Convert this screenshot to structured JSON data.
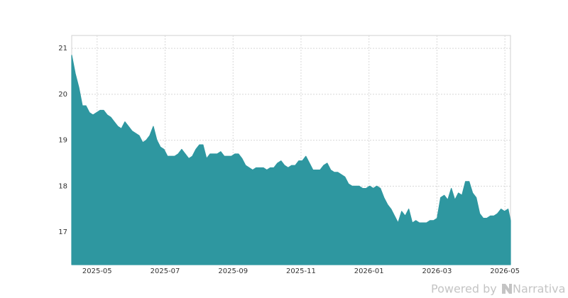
{
  "chart_data": {
    "type": "area",
    "x": [
      2025.271,
      2025.2797,
      2025.2884,
      2025.2971,
      2025.3058,
      2025.3145,
      2025.3232,
      2025.3319,
      2025.3406,
      2025.3493,
      2025.358,
      2025.3667,
      2025.3754,
      2025.3841,
      2025.3928,
      2025.4015,
      2025.4102,
      2025.4189,
      2025.4276,
      2025.4363,
      2025.445,
      2025.4537,
      2025.4624,
      2025.4711,
      2025.4798,
      2025.4885,
      2025.4972,
      2025.5059,
      2025.5146,
      2025.5233,
      2025.532,
      2025.5407,
      2025.5494,
      2025.5581,
      2025.5668,
      2025.5755,
      2025.5842,
      2025.5929,
      2025.6016,
      2025.6103,
      2025.619,
      2025.6277,
      2025.6364,
      2025.6451,
      2025.6538,
      2025.6625,
      2025.6712,
      2025.6799,
      2025.6886,
      2025.6973,
      2025.706,
      2025.7147,
      2025.7234,
      2025.7321,
      2025.7408,
      2025.7495,
      2025.7582,
      2025.7669,
      2025.7756,
      2025.7843,
      2025.793,
      2025.8017,
      2025.8104,
      2025.8191,
      2025.8278,
      2025.8365,
      2025.8452,
      2025.8539,
      2025.8626,
      2025.8713,
      2025.88,
      2025.8887,
      2025.8974,
      2025.9061,
      2025.9148,
      2025.9235,
      2025.9322,
      2025.9409,
      2025.9496,
      2025.9583,
      2025.967,
      2025.9757,
      2025.9844,
      2025.9931,
      2026.0018,
      2026.0105,
      2026.0192,
      2026.0279,
      2026.0366,
      2026.0453,
      2026.054,
      2026.0627,
      2026.0714,
      2026.0801,
      2026.0888,
      2026.0975,
      2026.1062,
      2026.1149,
      2026.1236,
      2026.1323,
      2026.141,
      2026.1497,
      2026.1584,
      2026.1671,
      2026.1758,
      2026.1845,
      2026.1932,
      2026.2019,
      2026.2106,
      2026.2193,
      2026.228,
      2026.2367,
      2026.2454,
      2026.2541,
      2026.2628,
      2026.2715,
      2026.2802,
      2026.2889,
      2026.2976,
      2026.3063,
      2026.315,
      2026.3237,
      2026.3324,
      2026.3411,
      2026.347
    ],
    "values": [
      20.85,
      20.45,
      20.15,
      19.75,
      19.75,
      19.6,
      19.55,
      19.6,
      19.65,
      19.65,
      19.55,
      19.5,
      19.4,
      19.3,
      19.25,
      19.4,
      19.3,
      19.2,
      19.15,
      19.1,
      18.95,
      19.0,
      19.1,
      19.3,
      19.0,
      18.85,
      18.8,
      18.65,
      18.65,
      18.65,
      18.7,
      18.8,
      18.7,
      18.6,
      18.65,
      18.8,
      18.9,
      18.9,
      18.6,
      18.7,
      18.7,
      18.7,
      18.75,
      18.65,
      18.65,
      18.65,
      18.7,
      18.7,
      18.6,
      18.45,
      18.4,
      18.35,
      18.4,
      18.4,
      18.4,
      18.35,
      18.4,
      18.4,
      18.5,
      18.55,
      18.45,
      18.4,
      18.45,
      18.45,
      18.55,
      18.55,
      18.65,
      18.5,
      18.35,
      18.35,
      18.35,
      18.45,
      18.5,
      18.35,
      18.3,
      18.3,
      18.25,
      18.2,
      18.05,
      18.0,
      18.0,
      18.0,
      17.95,
      17.95,
      18.0,
      17.95,
      18.0,
      17.95,
      17.75,
      17.6,
      17.5,
      17.35,
      17.2,
      17.45,
      17.35,
      17.5,
      17.2,
      17.25,
      17.2,
      17.2,
      17.2,
      17.25,
      17.25,
      17.3,
      17.75,
      17.8,
      17.7,
      17.95,
      17.7,
      17.85,
      17.8,
      18.1,
      18.1,
      17.85,
      17.75,
      17.4,
      17.3,
      17.3,
      17.35,
      17.35,
      17.4,
      17.5,
      17.45,
      17.5,
      17.25
    ],
    "color": "#2e97a0",
    "xlim": [
      2025.271,
      2026.347
    ],
    "xticks": [
      {
        "value": 2025.3333,
        "label": "2025-05"
      },
      {
        "value": 2025.5,
        "label": "2025-07"
      },
      {
        "value": 2025.6667,
        "label": "2025-09"
      },
      {
        "value": 2025.8333,
        "label": "2025-11"
      },
      {
        "value": 2026.0,
        "label": "2026-01"
      },
      {
        "value": 2026.1667,
        "label": "2026-03"
      },
      {
        "value": 2026.3333,
        "label": "2026-05"
      }
    ],
    "ylim": [
      16.29,
      21.28
    ],
    "yticks": [
      17,
      18,
      19,
      20,
      21
    ],
    "grid": true
  },
  "watermark": {
    "prefix": "Powered by",
    "brand": "Narrativa"
  }
}
